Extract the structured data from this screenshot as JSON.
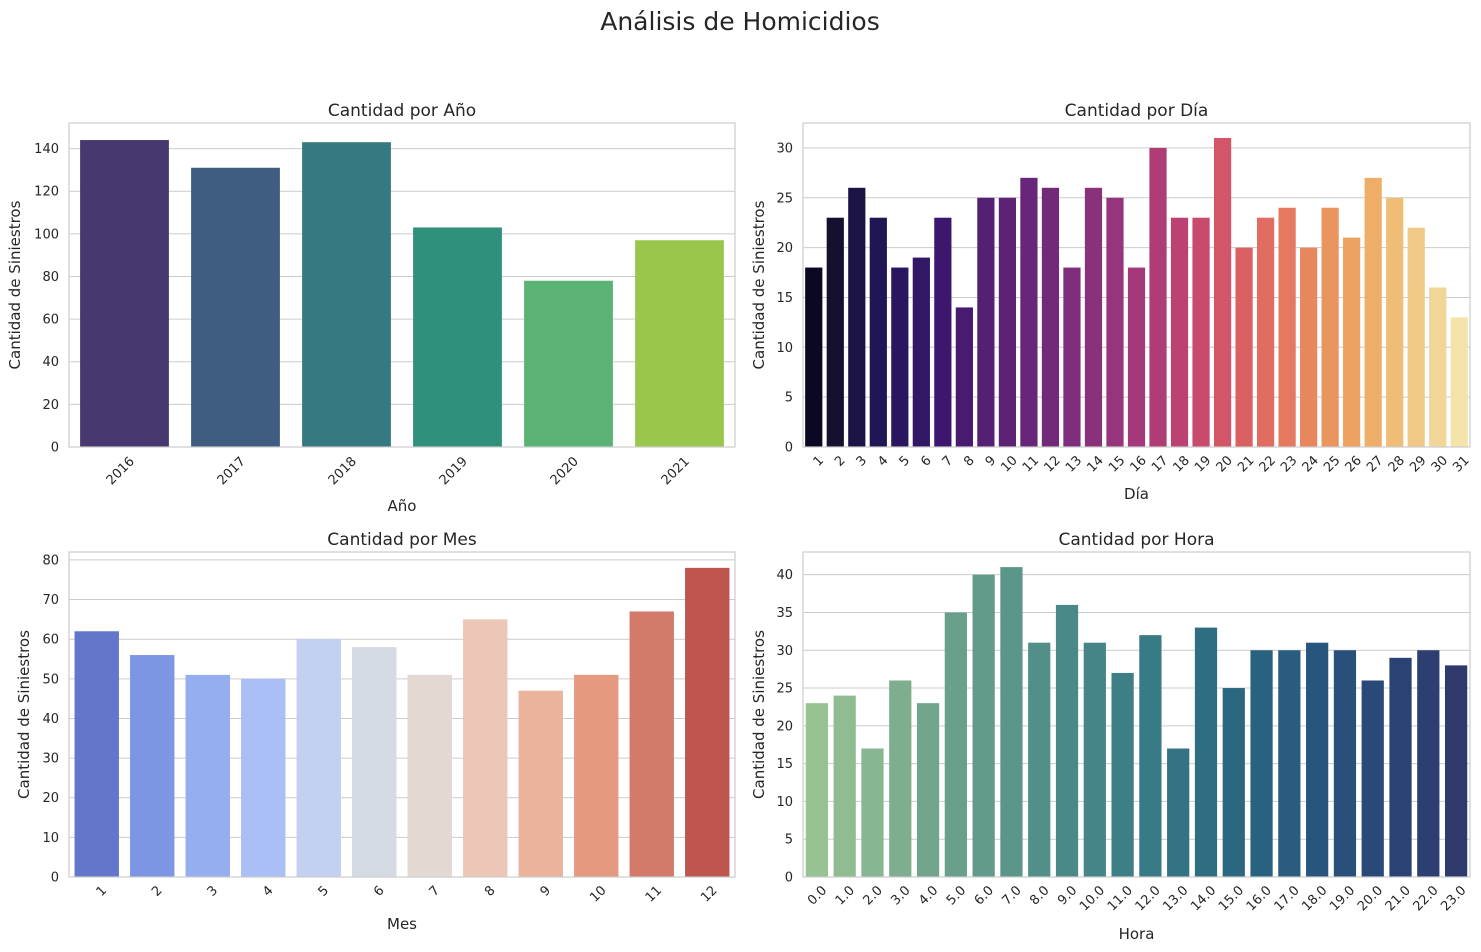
{
  "figure": {
    "title": "Análisis de Homicidios"
  },
  "chart_data": [
    {
      "type": "bar",
      "title": "Cantidad por Año",
      "xlabel": "Año",
      "ylabel": "Cantidad de Siniestros",
      "categories": [
        "2016",
        "2017",
        "2018",
        "2019",
        "2020",
        "2021"
      ],
      "values": [
        144,
        131,
        143,
        103,
        78,
        97
      ],
      "ylim": [
        0,
        152
      ],
      "yticks": [
        0,
        20,
        40,
        60,
        80,
        100,
        120,
        140
      ],
      "xtick_rotation": 45,
      "palette": "viridis",
      "colors": [
        "#47396f",
        "#3f5c81",
        "#357a80",
        "#2f917c",
        "#5ab374",
        "#99c74b"
      ],
      "grid": true
    },
    {
      "type": "bar",
      "title": "Cantidad por Día",
      "xlabel": "Día",
      "ylabel": "Cantidad de Siniestros",
      "categories": [
        "1",
        "2",
        "3",
        "4",
        "5",
        "6",
        "7",
        "8",
        "9",
        "10",
        "11",
        "12",
        "13",
        "14",
        "15",
        "16",
        "17",
        "18",
        "19",
        "20",
        "21",
        "22",
        "23",
        "24",
        "25",
        "26",
        "27",
        "28",
        "29",
        "30",
        "31"
      ],
      "values": [
        18,
        23,
        26,
        23,
        18,
        19,
        23,
        14,
        25,
        25,
        27,
        26,
        18,
        26,
        25,
        18,
        30,
        23,
        23,
        31,
        20,
        23,
        24,
        20,
        24,
        21,
        27,
        25,
        22,
        16,
        13
      ],
      "ylim": [
        0,
        32.5
      ],
      "yticks": [
        0,
        5,
        10,
        15,
        20,
        25,
        30
      ],
      "xtick_rotation": 45,
      "palette": "magma",
      "colors": [
        "#0a0822",
        "#16102f",
        "#1c1446",
        "#221555",
        "#2a1660",
        "#321767",
        "#3d176e",
        "#481a70",
        "#551f74",
        "#5e2275",
        "#68267a",
        "#73297a",
        "#7e2e7c",
        "#8a317c",
        "#97357c",
        "#a3397b",
        "#ae3d76",
        "#bb4272",
        "#c84a6d",
        "#d35568",
        "#db6063",
        "#e16d62",
        "#e5795f",
        "#e8865e",
        "#eb955e",
        "#eda262",
        "#eeae67",
        "#f0bd77",
        "#f1c986",
        "#f1d698",
        "#f4e4aa"
      ],
      "grid": true
    },
    {
      "type": "bar",
      "title": "Cantidad por Mes",
      "xlabel": "Mes",
      "ylabel": "Cantidad de Siniestros",
      "categories": [
        "1",
        "2",
        "3",
        "4",
        "5",
        "6",
        "7",
        "8",
        "9",
        "10",
        "11",
        "12"
      ],
      "values": [
        62,
        56,
        51,
        50,
        60,
        58,
        51,
        65,
        47,
        51,
        67,
        78
      ],
      "ylim": [
        0,
        82
      ],
      "yticks": [
        0,
        10,
        20,
        30,
        40,
        50,
        60,
        70,
        80
      ],
      "xtick_rotation": 45,
      "palette": "coolwarm",
      "colors": [
        "#6277cc",
        "#7c96e4",
        "#95aeef",
        "#aabff6",
        "#c2d0f2",
        "#d5dbe5",
        "#e4d8d3",
        "#ecc6b7",
        "#ebb39c",
        "#e59a7f",
        "#d47a6b",
        "#bf554f"
      ],
      "grid": true
    },
    {
      "type": "bar",
      "title": "Cantidad por Hora",
      "xlabel": "Hora",
      "ylabel": "Cantidad de Siniestros",
      "categories": [
        "0.0",
        "1.0",
        "2.0",
        "3.0",
        "4.0",
        "5.0",
        "6.0",
        "7.0",
        "8.0",
        "9.0",
        "10.0",
        "11.0",
        "12.0",
        "13.0",
        "14.0",
        "15.0",
        "16.0",
        "17.0",
        "18.0",
        "19.0",
        "20.0",
        "21.0",
        "22.0",
        "23.0"
      ],
      "values": [
        23,
        24,
        17,
        26,
        23,
        35,
        40,
        41,
        31,
        36,
        31,
        27,
        32,
        17,
        33,
        25,
        30,
        30,
        31,
        30,
        26,
        29,
        30,
        28
      ],
      "ylim": [
        0,
        43
      ],
      "yticks": [
        0,
        5,
        10,
        15,
        20,
        25,
        30,
        35,
        40
      ],
      "xtick_rotation": 45,
      "palette": "crest",
      "colors": [
        "#97c393",
        "#90bc92",
        "#89b692",
        "#7fae8f",
        "#72a58d",
        "#69a08b",
        "#629b8b",
        "#5b968a",
        "#528f88",
        "#4a8988",
        "#458587",
        "#3e7f86",
        "#387a85",
        "#337384",
        "#2f6e82",
        "#2b6781",
        "#29627f",
        "#295c7e",
        "#28557d",
        "#28507b",
        "#294a78",
        "#2b4374",
        "#2d3e70",
        "#2f396b"
      ],
      "grid": true
    }
  ]
}
